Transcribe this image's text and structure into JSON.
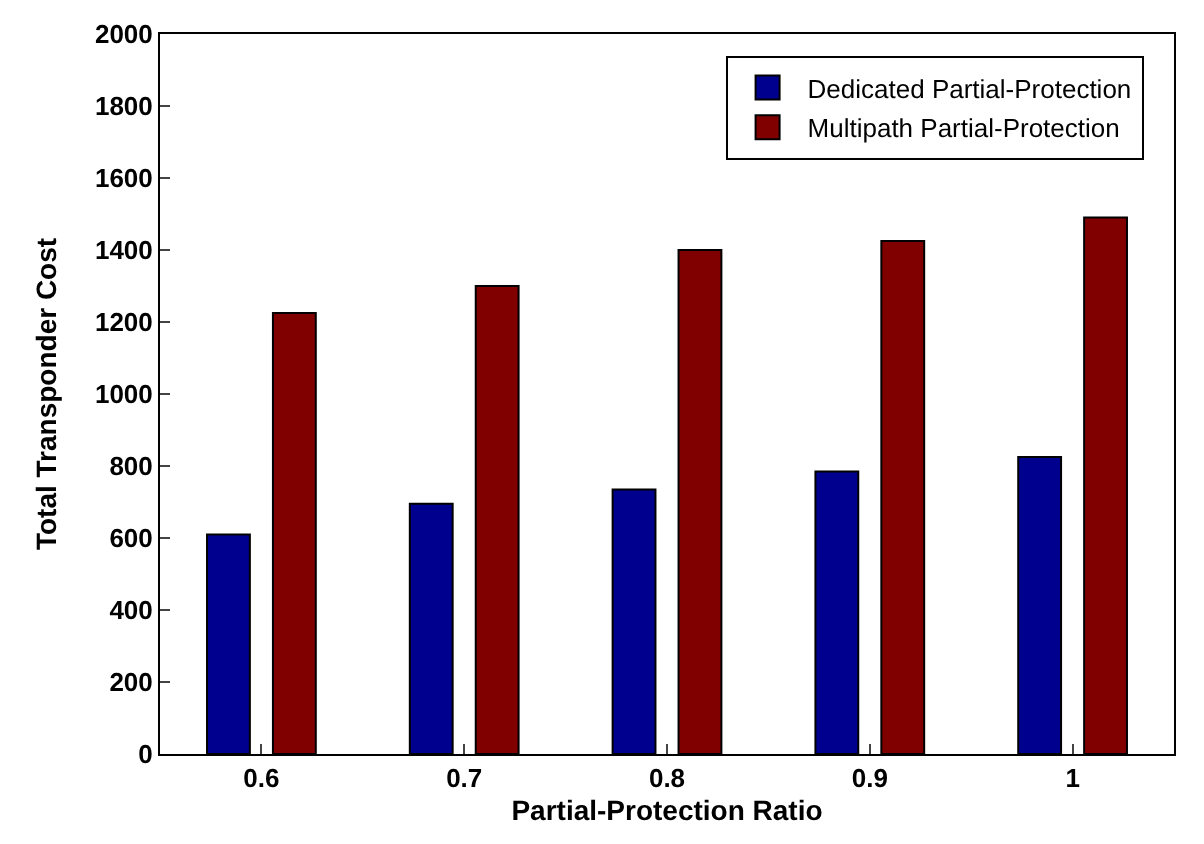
{
  "chart_data": {
    "type": "bar",
    "xlabel": "Partial-Protection Ratio",
    "ylabel": "Total Transponder Cost",
    "categories": [
      "0.6",
      "0.7",
      "0.8",
      "0.9",
      "1"
    ],
    "series": [
      {
        "name": "Dedicated Partial-Protection",
        "color": "#00008f",
        "values": [
          610,
          695,
          735,
          785,
          825
        ]
      },
      {
        "name": "Multipath Partial-Protection",
        "color": "#800000",
        "values": [
          1225,
          1300,
          1400,
          1425,
          1490
        ]
      }
    ],
    "ylim": [
      0,
      2000
    ],
    "yticks": [
      0,
      200,
      400,
      600,
      800,
      1000,
      1200,
      1400,
      1600,
      1800,
      2000
    ],
    "legend": "top right"
  }
}
